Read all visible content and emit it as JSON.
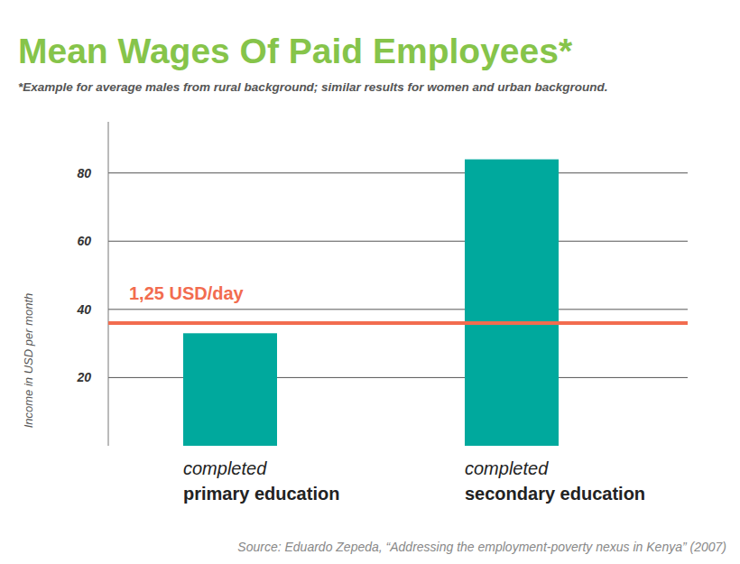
{
  "chart_data": {
    "type": "bar",
    "title": "Mean Wages Of Paid Employees*",
    "subtitle": "*Example for average males from rural background; similar results for women and urban background.",
    "y_label": "Income in USD per month",
    "categories": [
      "completed primary education",
      "completed secondary education"
    ],
    "values": [
      33,
      84
    ],
    "color": "#00a99d",
    "ylim": [
      0,
      95
    ],
    "yticks": [
      20,
      40,
      60,
      80
    ],
    "grid": true,
    "reference_lines": [
      {
        "value": 36,
        "label": "1,25 USD/day",
        "color": "#f26c4f"
      }
    ],
    "source": "Source: Eduardo Zepeda, “Addressing the employment-poverty nexus in Kenya” (2007)"
  }
}
